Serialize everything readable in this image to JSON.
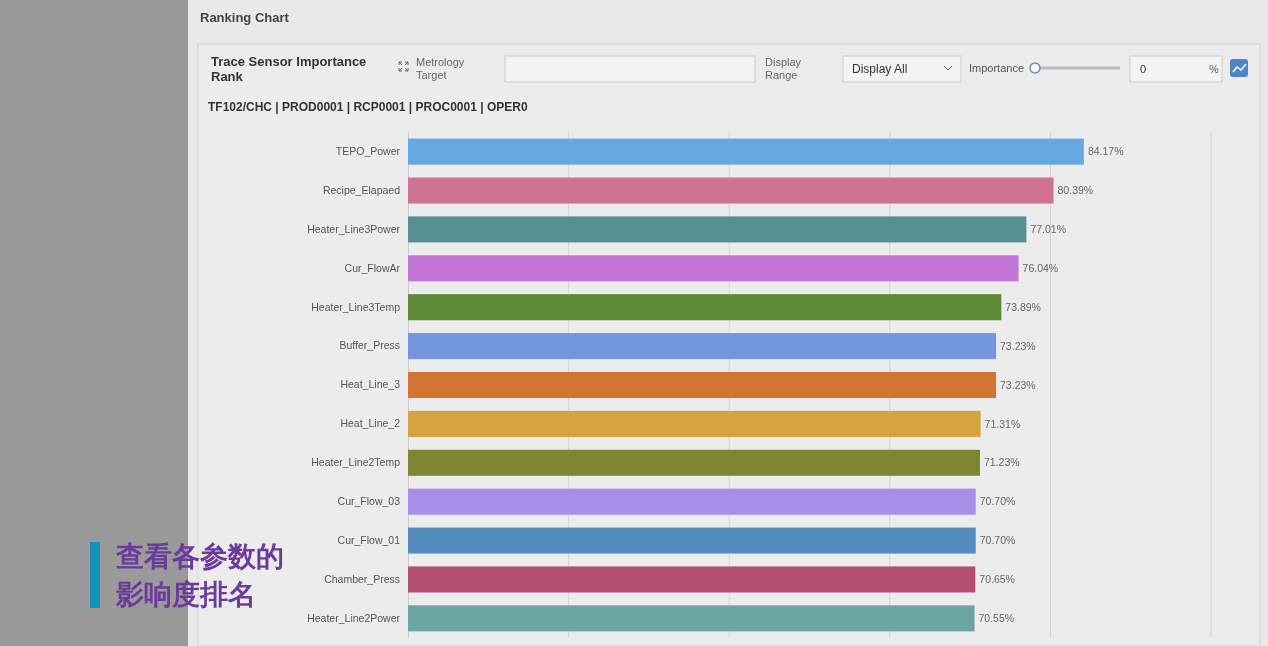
{
  "chart_data": {
    "type": "bar",
    "orientation": "horizontal",
    "title": "Trace Sensor Importance Rank",
    "subtitle": "TF102/CHC | PROD0001 | RCP0001 | PROC0001 | OPER0",
    "categories": [
      "TEPO_Power",
      "Recipe_Elapaed",
      "Heater_Line3Power",
      "Cur_FlowAr",
      "Heater_Line3Temp",
      "Buffer_Press",
      "Heat_Line_3",
      "Heat_Line_2",
      "Heater_Line2Temp",
      "Cur_Flow_03",
      "Cur_Flow_01",
      "Chamber_Press",
      "Heater_Line2Power"
    ],
    "values": [
      84.17,
      80.39,
      77.01,
      76.04,
      73.89,
      73.23,
      73.23,
      71.31,
      71.23,
      70.7,
      70.7,
      70.65,
      70.55
    ],
    "value_labels": [
      "84.17%",
      "80.39%",
      "77.01%",
      "76.04%",
      "73.89%",
      "73.23%",
      "73.23%",
      "71.31%",
      "71.23%",
      "70.70%",
      "70.70%",
      "70.65%",
      "70.55%"
    ],
    "colors": [
      "#65a8e2",
      "#cf7396",
      "#558f91",
      "#c475d8",
      "#5e8a35",
      "#7496de",
      "#d27434",
      "#d4a33e",
      "#7f8632",
      "#a78ee8",
      "#558bbf",
      "#b44f71",
      "#6aa6a2"
    ],
    "xlim": [
      0,
      100
    ],
    "xticks": [
      {
        "value": 20,
        "label": null
      },
      {
        "value": 40,
        "label": null
      },
      {
        "value": 60,
        "label": null
      },
      {
        "value": 80,
        "label": null
      },
      {
        "value": 100,
        "label": null
      }
    ],
    "grid": "x",
    "tick_labels": "y",
    "annotations": [
      "Ranking Chart",
      "Metrology Target",
      "Display Range",
      "Display All",
      "Importance",
      "0",
      "%",
      "查看各参数的影响度排名"
    ]
  }
}
